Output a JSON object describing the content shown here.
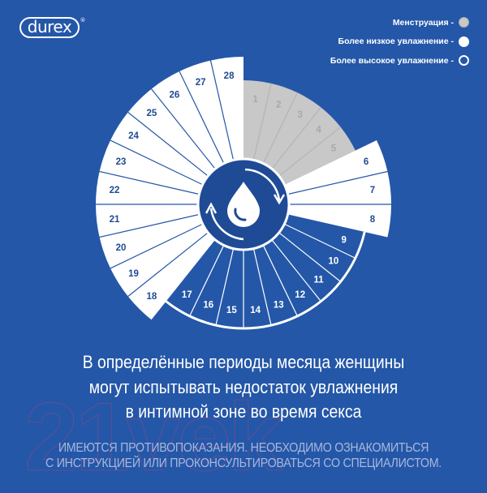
{
  "brand": {
    "logo_text": "durex",
    "registered_mark": "®"
  },
  "legend": [
    {
      "label": "Менструация -",
      "swatch": "grey-filled"
    },
    {
      "label": "Более низкое увлажнение -",
      "swatch": "white-filled"
    },
    {
      "label": "Более высокое увлажнение -",
      "swatch": "white-outline"
    }
  ],
  "colors": {
    "background": "#2457a8",
    "center": "#1f4b96",
    "menstruation": "#c8c8c8",
    "low_moisture": "#ffffff",
    "high_moisture": "#2457a8",
    "label_dark": "#1f4a93"
  },
  "cycle": {
    "center_icon": "water-drop-cycle-icon",
    "days": [
      {
        "day": "1",
        "phase": "menstruation"
      },
      {
        "day": "2",
        "phase": "menstruation"
      },
      {
        "day": "3",
        "phase": "menstruation"
      },
      {
        "day": "4",
        "phase": "menstruation"
      },
      {
        "day": "5",
        "phase": "menstruation"
      },
      {
        "day": "6",
        "phase": "low"
      },
      {
        "day": "7",
        "phase": "low"
      },
      {
        "day": "8",
        "phase": "low"
      },
      {
        "day": "9",
        "phase": "high"
      },
      {
        "day": "10",
        "phase": "high"
      },
      {
        "day": "11",
        "phase": "high"
      },
      {
        "day": "12",
        "phase": "high"
      },
      {
        "day": "13",
        "phase": "high"
      },
      {
        "day": "14",
        "phase": "high"
      },
      {
        "day": "15",
        "phase": "high"
      },
      {
        "day": "16",
        "phase": "high"
      },
      {
        "day": "17",
        "phase": "high"
      },
      {
        "day": "18",
        "phase": "low"
      },
      {
        "day": "19",
        "phase": "low"
      },
      {
        "day": "20",
        "phase": "low"
      },
      {
        "day": "21",
        "phase": "low"
      },
      {
        "day": "22",
        "phase": "low"
      },
      {
        "day": "23",
        "phase": "low"
      },
      {
        "day": "24",
        "phase": "low"
      },
      {
        "day": "25",
        "phase": "low"
      },
      {
        "day": "26",
        "phase": "low"
      },
      {
        "day": "27",
        "phase": "low"
      },
      {
        "day": "28",
        "phase": "low"
      }
    ]
  },
  "headline": [
    "В определённые периоды месяца женщины",
    "могут испытывать недостаток увлажнения",
    "в интимной зоне во время секса"
  ],
  "disclaimer": [
    "ИМЕЮТСЯ ПРОТИВОПОКАЗАНИЯ. НЕОБХОДИМО ОЗНАКОМИТЬСЯ",
    "С ИНСТРУКЦИЕЙ ИЛИ ПРОКОНСУЛЬТИРОВАТЬСЯ СО СПЕЦИАЛИСТОМ."
  ],
  "watermark": "21vek.by"
}
